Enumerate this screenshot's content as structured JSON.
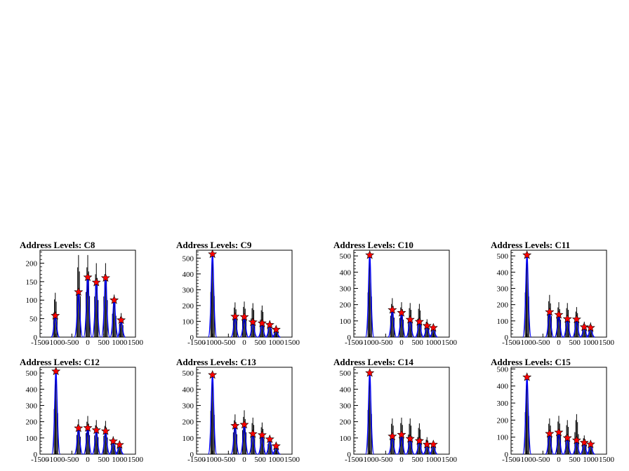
{
  "x_ticks": [
    "-1500",
    "-1000",
    "-500",
    "0",
    "500",
    "1000",
    "1500"
  ],
  "colors": {
    "histogram": "#000000",
    "fit": "#0000ff",
    "marker": "#ff0000",
    "frame": "#000000"
  },
  "chart_data": [
    {
      "type": "bar",
      "title": "Address Levels: C8",
      "xlim": [
        -1500,
        1500
      ],
      "ylim": [
        0,
        235
      ],
      "y_ticks": [
        50,
        100,
        150,
        200
      ],
      "peaks": [
        {
          "x": -1020,
          "y": 58,
          "hmax": 120
        },
        {
          "x": -290,
          "y": 122,
          "hmax": 222
        },
        {
          "x": 0,
          "y": 162,
          "hmax": 222
        },
        {
          "x": 270,
          "y": 148,
          "hmax": 200
        },
        {
          "x": 560,
          "y": 160,
          "hmax": 200
        },
        {
          "x": 830,
          "y": 100,
          "hmax": 115
        },
        {
          "x": 1050,
          "y": 46,
          "hmax": 65
        }
      ]
    },
    {
      "type": "bar",
      "title": "Address Levels: C9",
      "xlim": [
        -1500,
        1500
      ],
      "ylim": [
        0,
        550
      ],
      "y_ticks": [
        100,
        200,
        300,
        400,
        500
      ],
      "peaks": [
        {
          "x": -1000,
          "y": 525,
          "hmax": 520
        },
        {
          "x": -290,
          "y": 130,
          "hmax": 220
        },
        {
          "x": 0,
          "y": 128,
          "hmax": 225
        },
        {
          "x": 270,
          "y": 95,
          "hmax": 215
        },
        {
          "x": 560,
          "y": 88,
          "hmax": 200
        },
        {
          "x": 800,
          "y": 78,
          "hmax": 105
        },
        {
          "x": 1000,
          "y": 48,
          "hmax": 70
        }
      ]
    },
    {
      "type": "bar",
      "title": "Address Levels: C10",
      "xlim": [
        -1500,
        1500
      ],
      "ylim": [
        0,
        535
      ],
      "y_ticks": [
        100,
        200,
        300,
        400,
        500
      ],
      "peaks": [
        {
          "x": -1000,
          "y": 505,
          "hmax": 500
        },
        {
          "x": -290,
          "y": 168,
          "hmax": 240
        },
        {
          "x": 0,
          "y": 150,
          "hmax": 215
        },
        {
          "x": 270,
          "y": 108,
          "hmax": 210
        },
        {
          "x": 560,
          "y": 95,
          "hmax": 205
        },
        {
          "x": 800,
          "y": 70,
          "hmax": 110
        },
        {
          "x": 1000,
          "y": 58,
          "hmax": 75
        }
      ]
    },
    {
      "type": "bar",
      "title": "Address Levels: C11",
      "xlim": [
        -1500,
        1500
      ],
      "ylim": [
        0,
        535
      ],
      "y_ticks": [
        100,
        200,
        300,
        400,
        500
      ],
      "peaks": [
        {
          "x": -1000,
          "y": 505,
          "hmax": 500
        },
        {
          "x": -290,
          "y": 155,
          "hmax": 260
        },
        {
          "x": 0,
          "y": 138,
          "hmax": 215
        },
        {
          "x": 270,
          "y": 112,
          "hmax": 210
        },
        {
          "x": 560,
          "y": 110,
          "hmax": 185
        },
        {
          "x": 800,
          "y": 62,
          "hmax": 95
        },
        {
          "x": 1000,
          "y": 58,
          "hmax": 90
        }
      ]
    },
    {
      "type": "bar",
      "title": "Address Levels: C12",
      "xlim": [
        -1500,
        1500
      ],
      "ylim": [
        0,
        535
      ],
      "y_ticks": [
        100,
        200,
        300,
        400,
        500
      ],
      "peaks": [
        {
          "x": -1000,
          "y": 510,
          "hmax": 505
        },
        {
          "x": -290,
          "y": 160,
          "hmax": 215
        },
        {
          "x": 0,
          "y": 162,
          "hmax": 235
        },
        {
          "x": 270,
          "y": 148,
          "hmax": 210
        },
        {
          "x": 560,
          "y": 142,
          "hmax": 205
        },
        {
          "x": 800,
          "y": 80,
          "hmax": 110
        },
        {
          "x": 1000,
          "y": 58,
          "hmax": 70
        }
      ]
    },
    {
      "type": "bar",
      "title": "Address Levels: C13",
      "xlim": [
        -1500,
        1500
      ],
      "ylim": [
        0,
        535
      ],
      "y_ticks": [
        100,
        200,
        300,
        400,
        500
      ],
      "peaks": [
        {
          "x": -1000,
          "y": 488,
          "hmax": 485
        },
        {
          "x": -290,
          "y": 175,
          "hmax": 245
        },
        {
          "x": 0,
          "y": 182,
          "hmax": 270
        },
        {
          "x": 270,
          "y": 125,
          "hmax": 225
        },
        {
          "x": 560,
          "y": 118,
          "hmax": 195
        },
        {
          "x": 800,
          "y": 92,
          "hmax": 115
        },
        {
          "x": 1000,
          "y": 50,
          "hmax": 60
        }
      ]
    },
    {
      "type": "bar",
      "title": "Address Levels: C14",
      "xlim": [
        -1500,
        1500
      ],
      "ylim": [
        0,
        535
      ],
      "y_ticks": [
        100,
        200,
        300,
        400,
        500
      ],
      "peaks": [
        {
          "x": -1000,
          "y": 500,
          "hmax": 495
        },
        {
          "x": -290,
          "y": 110,
          "hmax": 220
        },
        {
          "x": 0,
          "y": 120,
          "hmax": 225
        },
        {
          "x": 270,
          "y": 95,
          "hmax": 220
        },
        {
          "x": 560,
          "y": 82,
          "hmax": 190
        },
        {
          "x": 800,
          "y": 60,
          "hmax": 105
        },
        {
          "x": 1000,
          "y": 60,
          "hmax": 75
        }
      ]
    },
    {
      "type": "bar",
      "title": "Address Levels: C15",
      "xlim": [
        -1500,
        1500
      ],
      "ylim": [
        0,
        510
      ],
      "y_ticks": [
        100,
        200,
        300,
        400,
        500
      ],
      "peaks": [
        {
          "x": -1000,
          "y": 452,
          "hmax": 448
        },
        {
          "x": -290,
          "y": 120,
          "hmax": 210
        },
        {
          "x": 0,
          "y": 128,
          "hmax": 225
        },
        {
          "x": 270,
          "y": 95,
          "hmax": 200
        },
        {
          "x": 560,
          "y": 82,
          "hmax": 235
        },
        {
          "x": 800,
          "y": 68,
          "hmax": 110
        },
        {
          "x": 1000,
          "y": 58,
          "hmax": 70
        }
      ]
    }
  ]
}
